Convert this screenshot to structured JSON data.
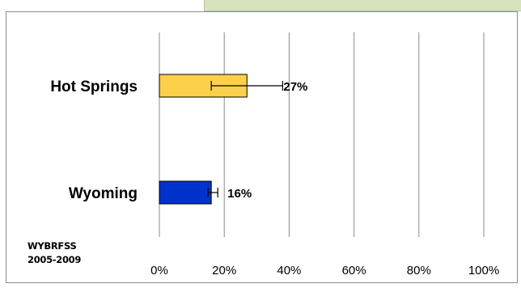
{
  "chart_data": {
    "type": "bar",
    "orientation": "horizontal",
    "categories": [
      "Hot Springs",
      "Wyoming"
    ],
    "values": [
      27,
      16
    ],
    "value_labels": [
      "27%",
      "16%"
    ],
    "error_bars": [
      {
        "low": 16,
        "high": 38
      },
      {
        "low": 15,
        "high": 18
      }
    ],
    "bar_colors": [
      "#fdd04b",
      "#0033cc"
    ],
    "x_ticks": [
      "0%",
      "20%",
      "40%",
      "60%",
      "80%",
      "100%"
    ],
    "xlim": [
      0,
      100
    ],
    "grid": "vertical"
  },
  "source_note": {
    "line1": "WYBRFSS",
    "line2": "2005-2009"
  },
  "colors": {
    "header_strip": "#d6e3bc",
    "frame_border": "#8c8c8c",
    "gridline": "#8c8c8c"
  }
}
